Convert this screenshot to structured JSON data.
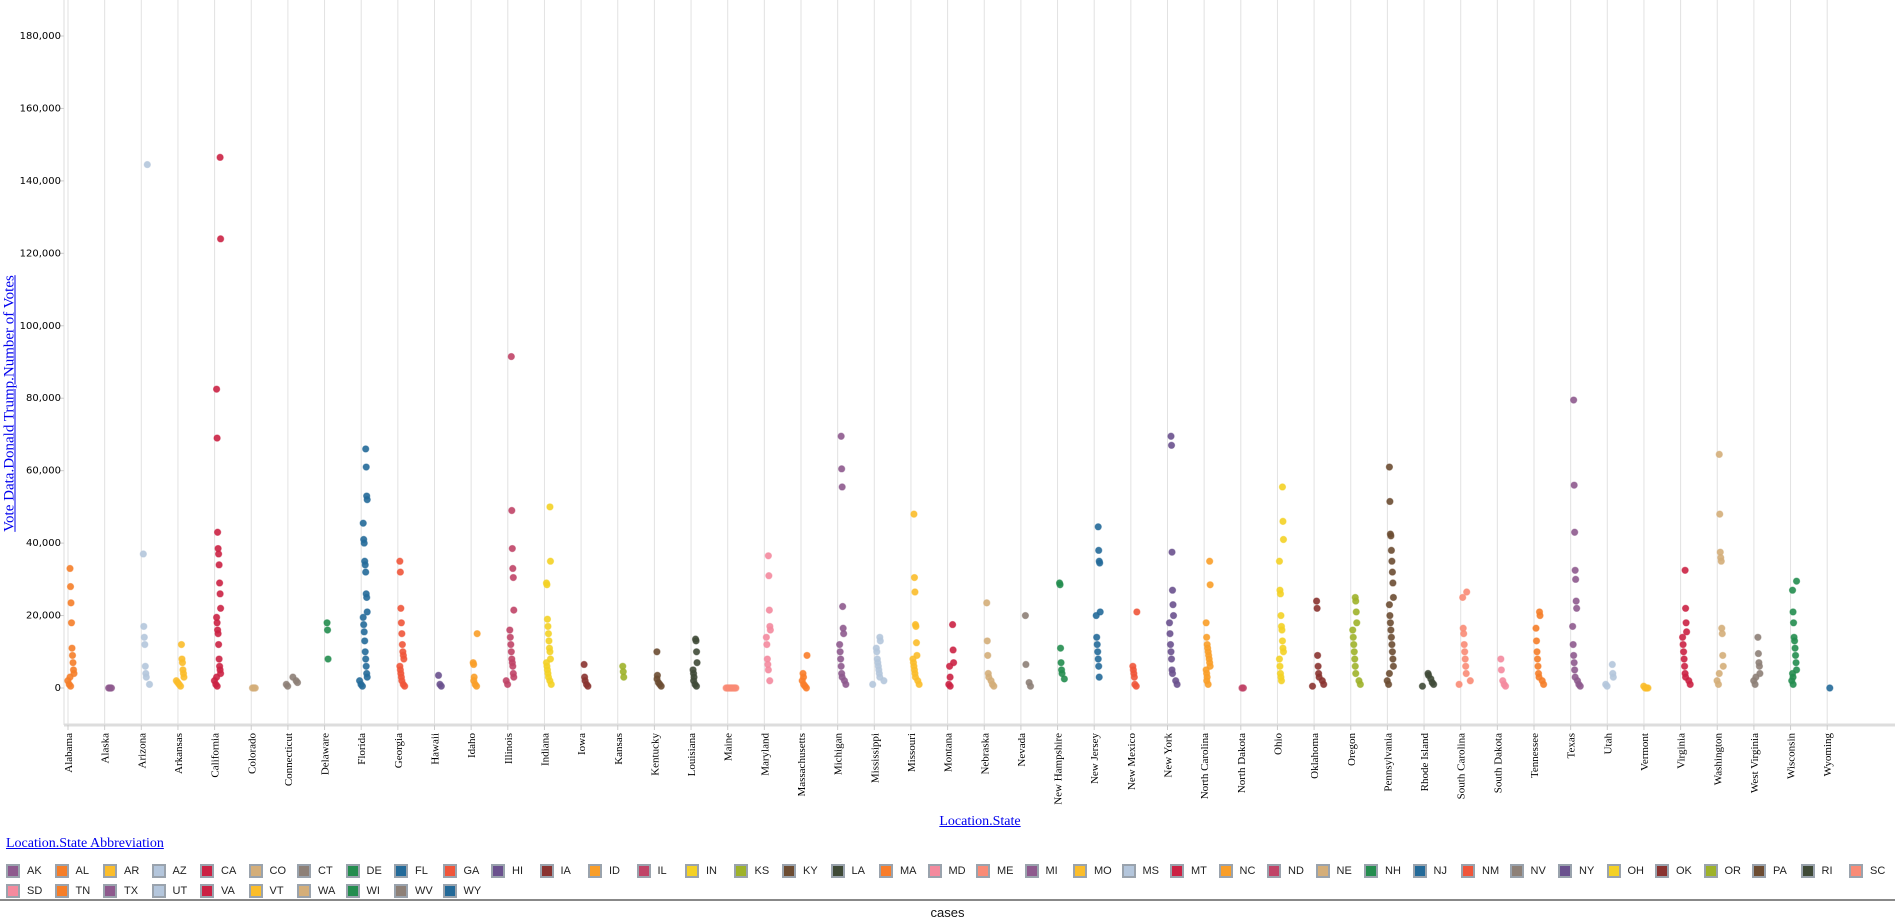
{
  "footer": {
    "label": "cases"
  },
  "legend": {
    "title": "Location.State Abbreviation"
  },
  "chart_data": {
    "type": "scatter",
    "xlabel": "Location.State",
    "ylabel": "Vote Data.Donald Trump.Number of Votes",
    "ylim": [
      -10000,
      190000
    ],
    "yticks": [
      "0",
      "20,000",
      "40,000",
      "60,000",
      "80,000",
      "100,000",
      "120,000",
      "140,000",
      "160,000",
      "180,000"
    ],
    "ytick_values": [
      0,
      20000,
      40000,
      60000,
      80000,
      100000,
      120000,
      140000,
      160000,
      180000
    ],
    "grid": {
      "vertical": true,
      "horizontal": false
    },
    "legend_placement": "bottom",
    "series": [
      {
        "name": "Alabama",
        "abbr": "AL",
        "color": "#f57e29",
        "values": [
          33000,
          28000,
          23500,
          18000,
          11000,
          9000,
          7000,
          5000,
          4000,
          3000,
          2000,
          1000,
          500
        ]
      },
      {
        "name": "Alaska",
        "abbr": "AK",
        "color": "#8e5a8e",
        "values": [
          0,
          0,
          0
        ]
      },
      {
        "name": "Arizona",
        "abbr": "AZ",
        "color": "#b4c6dc",
        "values": [
          144500,
          37000,
          17000,
          14000,
          12000,
          6000,
          4000,
          3000,
          1000
        ]
      },
      {
        "name": "Arkansas",
        "abbr": "AR",
        "color": "#fbbd2a",
        "values": [
          12000,
          8000,
          7000,
          5000,
          4000,
          3000,
          2000,
          1500,
          1000,
          500
        ]
      },
      {
        "name": "California",
        "abbr": "CA",
        "color": "#cb2244",
        "values": [
          146500,
          124000,
          82500,
          69000,
          43000,
          38500,
          37000,
          34000,
          29000,
          26000,
          22000,
          19500,
          18000,
          16000,
          15000,
          12000,
          8000,
          6000,
          5000,
          4000,
          3000,
          2000,
          1000,
          500
        ]
      },
      {
        "name": "Colorado",
        "abbr": "CO",
        "color": "#d4ae79",
        "values": [
          0,
          0,
          0
        ]
      },
      {
        "name": "Connecticut",
        "abbr": "CT",
        "color": "#8d8077",
        "values": [
          3000,
          2000,
          1500,
          1000,
          500
        ]
      },
      {
        "name": "Delaware",
        "abbr": "DE",
        "color": "#248d4f",
        "values": [
          18000,
          16000,
          8000
        ]
      },
      {
        "name": "Florida",
        "abbr": "FL",
        "color": "#236a99",
        "values": [
          66000,
          61000,
          53000,
          52000,
          45500,
          41000,
          40000,
          35000,
          34000,
          32000,
          26000,
          25000,
          21000,
          19500,
          17500,
          15500,
          13000,
          10000,
          8000,
          6000,
          4000,
          3000,
          2000,
          1000,
          500
        ]
      },
      {
        "name": "Georgia",
        "abbr": "GA",
        "color": "#f0553a",
        "values": [
          35000,
          32000,
          22000,
          18000,
          15000,
          12000,
          10000,
          9000,
          8000,
          6000,
          5000,
          4000,
          3000,
          2000,
          1000,
          500
        ]
      },
      {
        "name": "Hawaii",
        "abbr": "HI",
        "color": "#6a518e",
        "values": [
          3500,
          1000,
          500
        ]
      },
      {
        "name": "Idaho",
        "abbr": "ID",
        "color": "#f99e28",
        "values": [
          15000,
          7000,
          6500,
          3000,
          2000,
          1000,
          500
        ]
      },
      {
        "name": "Illinois",
        "abbr": "IL",
        "color": "#c04467",
        "values": [
          91500,
          49000,
          38500,
          33000,
          30500,
          21500,
          16000,
          14000,
          12000,
          10000,
          8000,
          7000,
          6000,
          4000,
          3000,
          2000,
          1000
        ]
      },
      {
        "name": "Indiana",
        "abbr": "IN",
        "color": "#f4d125",
        "values": [
          50000,
          35000,
          29000,
          28500,
          19000,
          17000,
          15000,
          13000,
          11000,
          10000,
          8000,
          7000,
          6000,
          5000,
          4000,
          3000,
          2000,
          1000
        ]
      },
      {
        "name": "Iowa",
        "abbr": "IA",
        "color": "#8a3330",
        "values": [
          6500,
          3000,
          2000,
          1000,
          500
        ]
      },
      {
        "name": "Kansas",
        "abbr": "KS",
        "color": "#9eb22a",
        "values": [
          6000,
          4500,
          3000
        ]
      },
      {
        "name": "Kentucky",
        "abbr": "KY",
        "color": "#6c4c32",
        "values": [
          10000,
          3500,
          2500,
          1500,
          1000,
          500
        ]
      },
      {
        "name": "Louisiana",
        "abbr": "LA",
        "color": "#3f4a37",
        "values": [
          13500,
          13000,
          10000,
          7000,
          5000,
          4000,
          3000,
          2000,
          1000,
          500
        ]
      },
      {
        "name": "Maine",
        "abbr": "ME",
        "color": "#f98b76",
        "values": [
          0,
          0,
          0,
          0,
          0,
          0,
          0,
          0
        ]
      },
      {
        "name": "Maryland",
        "abbr": "MD",
        "color": "#f48a9e",
        "values": [
          36500,
          31000,
          21500,
          17000,
          16000,
          14000,
          12000,
          8000,
          6500,
          5000,
          2000
        ]
      },
      {
        "name": "Massachusetts",
        "abbr": "MA",
        "color": "#f97d2a",
        "values": [
          9000,
          4000,
          3000,
          2000,
          1000,
          500,
          0
        ]
      },
      {
        "name": "Michigan",
        "abbr": "MI",
        "color": "#8e5a8e",
        "values": [
          69500,
          60500,
          55500,
          22500,
          16500,
          15000,
          12000,
          10000,
          8000,
          6000,
          4000,
          3000,
          2000,
          1000
        ]
      },
      {
        "name": "Mississippi",
        "abbr": "MS",
        "color": "#b4c6dc",
        "values": [
          14000,
          13000,
          11000,
          10000,
          8000,
          7000,
          6000,
          5000,
          4000,
          3000,
          2000,
          1000
        ]
      },
      {
        "name": "Missouri",
        "abbr": "MO",
        "color": "#fbbd2a",
        "values": [
          48000,
          30500,
          26500,
          17500,
          17000,
          12500,
          9000,
          8000,
          7000,
          6000,
          5000,
          4000,
          3000,
          2000,
          1000
        ]
      },
      {
        "name": "Montana",
        "abbr": "MT",
        "color": "#cb2244",
        "values": [
          17500,
          10500,
          7000,
          6000,
          3000,
          1000,
          500
        ]
      },
      {
        "name": "Nebraska",
        "abbr": "NE",
        "color": "#d4ae79",
        "values": [
          23500,
          13000,
          9000,
          4000,
          3000,
          2000,
          1000,
          500
        ]
      },
      {
        "name": "Nevada",
        "abbr": "NV",
        "color": "#8d8077",
        "values": [
          20000,
          6500,
          1500,
          500
        ]
      },
      {
        "name": "New Hampshire",
        "abbr": "NH",
        "color": "#248d4f",
        "values": [
          29000,
          28500,
          11000,
          7000,
          5000,
          4000,
          2500
        ]
      },
      {
        "name": "New Jersey",
        "abbr": "NJ",
        "color": "#236a99",
        "values": [
          44500,
          38000,
          35000,
          34500,
          21000,
          20000,
          14000,
          12000,
          10000,
          8000,
          6000,
          3000
        ]
      },
      {
        "name": "New Mexico",
        "abbr": "NM",
        "color": "#f0553a",
        "values": [
          21000,
          6000,
          5000,
          4000,
          3000,
          1000,
          500
        ]
      },
      {
        "name": "New York",
        "abbr": "NY",
        "color": "#6a518e",
        "values": [
          69500,
          67000,
          37500,
          27000,
          23000,
          20000,
          18000,
          15000,
          12000,
          10000,
          8000,
          5000,
          4000,
          2000,
          1000
        ]
      },
      {
        "name": "North Carolina",
        "abbr": "NC",
        "color": "#f99e28",
        "values": [
          35000,
          28500,
          18000,
          14000,
          12000,
          11000,
          10000,
          9000,
          8000,
          7000,
          6000,
          5000,
          4000,
          3000,
          2000,
          1000
        ]
      },
      {
        "name": "North Dakota",
        "abbr": "ND",
        "color": "#c04467",
        "values": [
          0,
          0
        ]
      },
      {
        "name": "Ohio",
        "abbr": "OH",
        "color": "#f4d125",
        "values": [
          55500,
          46000,
          41000,
          35000,
          27000,
          26000,
          20000,
          17000,
          16000,
          13000,
          11000,
          10000,
          8000,
          6000,
          4000,
          3000,
          2000
        ]
      },
      {
        "name": "Oklahoma",
        "abbr": "OK",
        "color": "#8a3330",
        "values": [
          24000,
          22000,
          9000,
          6000,
          4000,
          3000,
          2000,
          1000,
          500
        ]
      },
      {
        "name": "Oregon",
        "abbr": "OR",
        "color": "#9eb22a",
        "values": [
          25000,
          24000,
          21000,
          18000,
          16000,
          14000,
          12000,
          10000,
          8000,
          6000,
          4000,
          2000,
          1000
        ]
      },
      {
        "name": "Pennsylvania",
        "abbr": "PA",
        "color": "#6c4c32",
        "values": [
          61000,
          51500,
          42500,
          42000,
          38000,
          35000,
          32000,
          29000,
          25000,
          23000,
          20000,
          18000,
          16000,
          14000,
          12000,
          10000,
          8000,
          6000,
          4000,
          2000,
          1000
        ]
      },
      {
        "name": "Rhode Island",
        "abbr": "RI",
        "color": "#3f4a37",
        "values": [
          4000,
          3500,
          2500,
          1500,
          1000,
          500
        ]
      },
      {
        "name": "South Carolina",
        "abbr": "SC",
        "color": "#f98b76",
        "values": [
          26500,
          25000,
          16500,
          15000,
          12000,
          10000,
          8000,
          6000,
          4000,
          2000,
          1000
        ]
      },
      {
        "name": "South Dakota",
        "abbr": "SD",
        "color": "#f48a9e",
        "values": [
          8000,
          5000,
          2000,
          1000,
          500
        ]
      },
      {
        "name": "Tennessee",
        "abbr": "TN",
        "color": "#f57e29",
        "values": [
          21000,
          20000,
          16500,
          13000,
          10000,
          8000,
          6000,
          4000,
          3000,
          2000,
          1000
        ]
      },
      {
        "name": "Texas",
        "abbr": "TX",
        "color": "#8e5a8e",
        "values": [
          79500,
          56000,
          43000,
          32500,
          30000,
          24000,
          22000,
          17000,
          12000,
          9000,
          7000,
          5000,
          3000,
          2000,
          1000,
          500
        ]
      },
      {
        "name": "Utah",
        "abbr": "UT",
        "color": "#b4c6dc",
        "values": [
          6500,
          4000,
          3000,
          1000,
          500
        ]
      },
      {
        "name": "Vermont",
        "abbr": "VT",
        "color": "#fbbd2a",
        "values": [
          500,
          0,
          0,
          0
        ]
      },
      {
        "name": "Virginia",
        "abbr": "VA",
        "color": "#cb2244",
        "values": [
          32500,
          22000,
          18000,
          15500,
          14000,
          12000,
          10000,
          8000,
          6000,
          4000,
          3000,
          2000,
          1000
        ]
      },
      {
        "name": "Washington",
        "abbr": "WA",
        "color": "#d4ae79",
        "values": [
          64500,
          48000,
          37500,
          36000,
          35000,
          16500,
          15000,
          9000,
          6000,
          4000,
          2000,
          1000
        ]
      },
      {
        "name": "West Virginia",
        "abbr": "WV",
        "color": "#8d8077",
        "values": [
          14000,
          9500,
          7000,
          6000,
          4000,
          3000,
          2000,
          1000
        ]
      },
      {
        "name": "Wisconsin",
        "abbr": "WI",
        "color": "#248d4f",
        "values": [
          29500,
          27000,
          21000,
          18000,
          14000,
          13000,
          11000,
          9000,
          7000,
          5000,
          4000,
          3000,
          2000,
          1000
        ]
      },
      {
        "name": "Wyoming",
        "abbr": "WY",
        "color": "#236a99",
        "values": [
          0
        ]
      }
    ],
    "legend_order": [
      "AK",
      "AL",
      "AR",
      "AZ",
      "CA",
      "CO",
      "CT",
      "DE",
      "FL",
      "GA",
      "HI",
      "IA",
      "ID",
      "IL",
      "IN",
      "KS",
      "KY",
      "LA",
      "MA",
      "MD",
      "ME",
      "MI",
      "MO",
      "MS",
      "MT",
      "NC",
      "ND",
      "NE",
      "NH",
      "NJ",
      "NM",
      "NV",
      "NY",
      "OH",
      "OK",
      "OR",
      "PA",
      "RI",
      "SC",
      "SD",
      "TN",
      "TX",
      "UT",
      "VA",
      "VT",
      "WA",
      "WI",
      "WV",
      "WY"
    ]
  }
}
